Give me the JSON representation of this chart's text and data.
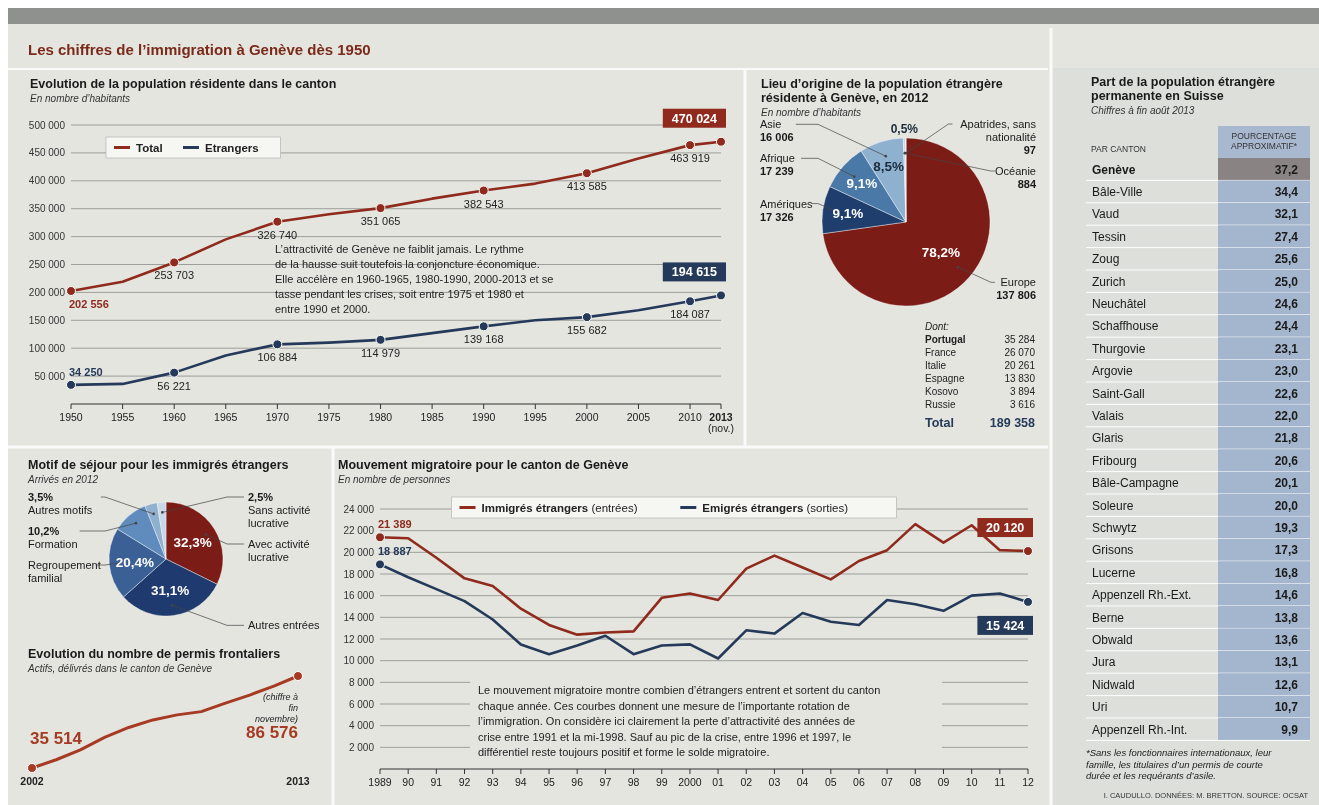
{
  "chart_data": [
    {
      "type": "other",
      "title": "Les chiffres de l’immigration à Genève dès 1950"
    },
    {
      "type": "line",
      "title": "Evolution de la population résidente dans le canton",
      "subtitle": "En nombre d’habitants",
      "x": [
        1950,
        1955,
        1960,
        1965,
        1970,
        1975,
        1980,
        1985,
        1990,
        1995,
        2000,
        2005,
        2010,
        2013
      ],
      "series": [
        {
          "name": "Total",
          "color": "#8f2a1c",
          "values": [
            202556,
            219000,
            253703,
            295000,
            326740,
            340000,
            351065,
            368000,
            382543,
            395000,
            413585,
            440000,
            463919,
            470024
          ],
          "value_labels": [
            "202 556",
            null,
            "253 703",
            null,
            "326 740",
            null,
            "351 065",
            null,
            "382 543",
            null,
            "413 585",
            null,
            "463 919",
            "470 024"
          ]
        },
        {
          "name": "Etrangers",
          "color": "#253a5a",
          "values": [
            34250,
            36000,
            56221,
            87000,
            106884,
            110000,
            114979,
            127000,
            139168,
            150000,
            155682,
            168000,
            184087,
            194615
          ],
          "value_labels": [
            "34 250",
            null,
            "56 221",
            null,
            "106 884",
            null,
            "114 979",
            null,
            "139 168",
            null,
            "155 682",
            null,
            "184 087",
            "194 615"
          ]
        }
      ],
      "xlim": [
        1950,
        2013
      ],
      "xticks": [
        1950,
        1955,
        1960,
        1965,
        1970,
        1975,
        1980,
        1985,
        1990,
        1995,
        2000,
        2005,
        2010,
        {
          "value": 2013,
          "label": "2013 (nov.)"
        }
      ],
      "ylim": [
        0,
        500000
      ],
      "yticks": [
        {
          "value": 50000,
          "label": "50 000"
        },
        {
          "value": 100000,
          "label": "100 000"
        },
        {
          "value": 150000,
          "label": "150 000"
        },
        {
          "value": 200000,
          "label": "200 000"
        },
        {
          "value": 250000,
          "label": "250 000"
        },
        {
          "value": 300000,
          "label": "300 000"
        },
        {
          "value": 350000,
          "label": "350 000"
        },
        {
          "value": 400000,
          "label": "400 000"
        },
        {
          "value": 450000,
          "label": "450 000"
        },
        {
          "value": 500000,
          "label": "500 000"
        }
      ],
      "grid": "y",
      "legend": "top left",
      "line_style": "solid",
      "annotations": [
        "L’attractivité de Genève ne faiblit jamais. Le rythme de la hausse suit toutefois la conjoncture économique. Elle accélère en 1960-1965, 1980-1990, 2000-2013 et se tasse pendant les crises, soit entre 1975 et 1980 et entre 1990 et 2000."
      ]
    },
    {
      "type": "pie",
      "title": "Lieu d’origine de la population étrangère résidente à Genève, en 2012",
      "subtitle": "En nombre d’habitants",
      "categories": [
        "Europe",
        "Amériques",
        "Afrique",
        "Asie",
        "Océanie",
        "Apatrides, sans nationalité"
      ],
      "values": [
        137806,
        17326,
        17239,
        16006,
        884,
        97
      ],
      "colors": [
        "#7b1c17",
        "#1f3e6d",
        "#4a79a8",
        "#8fb1d0",
        "#c6d6e4",
        "#dfe6ec"
      ],
      "data_labels": true,
      "annotations": [
        {
          "text": "78,2%",
          "x": "Europe"
        },
        {
          "text": "9,1%",
          "x": "Amériques"
        },
        {
          "text": "9,1%",
          "x": "Afrique"
        },
        {
          "text": "8,5%",
          "x": "Asie"
        },
        {
          "text": "0,5%",
          "x": "Océanie"
        },
        "Dont:",
        "Portugal 35 284",
        "France 26 070",
        "Italie 20 261",
        "Espagne 13 830",
        "Kosovo 3 894",
        "Russie 3 616",
        "Total 189 358"
      ]
    },
    {
      "type": "other",
      "title": "Part de la population étrangère permanente en Suisse",
      "subtitle": "Chiffres à fin août 2013",
      "ylabel": "PAR CANTON",
      "xlabel": "POURCENTAGE APPROXIMATIF*",
      "categories": [
        "Genève",
        "Bâle-Ville",
        "Vaud",
        "Tessin",
        "Zoug",
        "Zurich",
        "Neuchâtel",
        "Schaffhouse",
        "Thurgovie",
        "Argovie",
        "Saint-Gall",
        "Valais",
        "Glaris",
        "Fribourg",
        "Bâle-Campagne",
        "Soleure",
        "Schwytz",
        "Grisons",
        "Lucerne",
        "Appenzell Rh.-Ext.",
        "Berne",
        "Obwald",
        "Jura",
        "Nidwald",
        "Uri",
        "Appenzell Rh.-Int."
      ],
      "values": [
        37.2,
        34.4,
        32.1,
        27.4,
        25.6,
        25.0,
        24.6,
        24.4,
        23.1,
        23.0,
        22.6,
        22.0,
        21.8,
        20.6,
        20.1,
        20.0,
        19.3,
        17.3,
        16.8,
        14.6,
        13.8,
        13.6,
        13.1,
        12.6,
        10.7,
        9.9
      ],
      "value_labels": [
        "37,2",
        "34,4",
        "32,1",
        "27,4",
        "25,6",
        "25,0",
        "24,6",
        "24,4",
        "23,1",
        "23,0",
        "22,6",
        "22,0",
        "21,8",
        "20,6",
        "20,1",
        "20,0",
        "19,3",
        "17,3",
        "16,8",
        "14,6",
        "13,8",
        "13,6",
        "13,1",
        "12,6",
        "10,7",
        "9,9"
      ],
      "annotations": [
        "*Sans les fonctionnaires internationaux, leur famille, les titulaires d’un permis de courte durée et les requérants d’asile.",
        "I. CAUDULLO. DONNÉES: M. BRETTON. SOURCE: OCSAT"
      ]
    },
    {
      "type": "pie",
      "title": "Motif de séjour pour les immigrés étrangers",
      "subtitle": "Arrivés en 2012",
      "categories": [
        "Avec activité lucrative",
        "Autres entrées",
        "Regroupement familial",
        "Formation",
        "Autres motifs",
        "Sans activité lucrative"
      ],
      "values": [
        32.3,
        31.1,
        20.4,
        10.2,
        3.5,
        2.5
      ],
      "colors": [
        "#7b1c17",
        "#1f3a6e",
        "#3b6096",
        "#5f8bbd",
        "#8fb0cf",
        "#c8d8e6"
      ],
      "value_labels": [
        "32,3%",
        "31,1%",
        "20,4%",
        "10,2%",
        "3,5%",
        "2,5%"
      ]
    },
    {
      "type": "line",
      "title": "Evolution du nombre de permis frontaliers",
      "subtitle": "Actifs, délivrés dans le canton de Genève",
      "x": [
        2002,
        2003,
        2004,
        2005,
        2006,
        2007,
        2008,
        2009,
        2010,
        2011,
        2012,
        2013
      ],
      "series": [
        {
          "color": "#a63a22",
          "values": [
            35514,
            40100,
            45600,
            52500,
            58000,
            62200,
            65000,
            66800,
            71500,
            76000,
            81000,
            86576
          ],
          "value_labels": [
            "35 514",
            null,
            null,
            null,
            null,
            null,
            null,
            null,
            null,
            null,
            null,
            "86 576"
          ]
        }
      ],
      "xlim": [
        2002,
        2013
      ],
      "xticks": [
        2002,
        2013
      ],
      "tick_labels": "x",
      "annotations": [
        "(chiffre à fin novembre)"
      ]
    },
    {
      "type": "line",
      "title": "Mouvement migratoire pour le canton de Genève",
      "subtitle": "En nombre de personnes",
      "x": [
        1989,
        1990,
        1991,
        1992,
        1993,
        1994,
        1995,
        1996,
        1997,
        1998,
        1999,
        2000,
        2001,
        2002,
        2003,
        2004,
        2005,
        2006,
        2007,
        2008,
        2009,
        2010,
        2011,
        2012
      ],
      "series": [
        {
          "name": "Immigrés étrangers (entrées)",
          "color": "#8f2a1c",
          "values": [
            21389,
            21300,
            19500,
            17600,
            16900,
            14800,
            13300,
            12400,
            12600,
            12700,
            15800,
            16200,
            15600,
            18500,
            19700,
            18600,
            17500,
            19200,
            20200,
            22600,
            20900,
            22500,
            20200,
            20120
          ],
          "value_labels": [
            "21 389",
            null,
            null,
            null,
            null,
            null,
            null,
            null,
            null,
            null,
            null,
            null,
            null,
            null,
            null,
            null,
            null,
            null,
            null,
            null,
            null,
            null,
            null,
            "20 120"
          ]
        },
        {
          "name": "Emigrés étrangers (sorties)",
          "color": "#253a5a",
          "values": [
            18887,
            17700,
            16600,
            15500,
            13800,
            11500,
            10600,
            11400,
            12300,
            10600,
            11400,
            11500,
            10200,
            12800,
            12500,
            14400,
            13600,
            13300,
            15600,
            15200,
            14600,
            16000,
            16200,
            15424
          ],
          "value_labels": [
            "18 887",
            null,
            null,
            null,
            null,
            null,
            null,
            null,
            null,
            null,
            null,
            null,
            null,
            null,
            null,
            null,
            null,
            null,
            null,
            null,
            null,
            null,
            null,
            "15 424"
          ]
        }
      ],
      "xlim": [
        1989,
        2012
      ],
      "xticks": [
        1989,
        {
          "value": 1990,
          "label": "90"
        },
        {
          "value": 1991,
          "label": "91"
        },
        {
          "value": 1992,
          "label": "92"
        },
        {
          "value": 1993,
          "label": "93"
        },
        {
          "value": 1994,
          "label": "94"
        },
        {
          "value": 1995,
          "label": "95"
        },
        {
          "value": 1996,
          "label": "96"
        },
        {
          "value": 1997,
          "label": "97"
        },
        {
          "value": 1998,
          "label": "98"
        },
        {
          "value": 1999,
          "label": "99"
        },
        2000,
        {
          "value": 2001,
          "label": "01"
        },
        {
          "value": 2002,
          "label": "02"
        },
        {
          "value": 2003,
          "label": "03"
        },
        {
          "value": 2004,
          "label": "04"
        },
        {
          "value": 2005,
          "label": "05"
        },
        {
          "value": 2006,
          "label": "06"
        },
        {
          "value": 2007,
          "label": "07"
        },
        {
          "value": 2008,
          "label": "08"
        },
        {
          "value": 2009,
          "label": "09"
        },
        {
          "value": 2010,
          "label": "10"
        },
        {
          "value": 2011,
          "label": "11"
        },
        {
          "value": 2012,
          "label": "12"
        }
      ],
      "ylim": [
        0,
        24000
      ],
      "yticks": [
        {
          "value": 2000,
          "label": "2 000"
        },
        {
          "value": 4000,
          "label": "4 000"
        },
        {
          "value": 6000,
          "label": "6 000"
        },
        {
          "value": 8000,
          "label": "8 000"
        },
        {
          "value": 10000,
          "label": "10 000"
        },
        {
          "value": 12000,
          "label": "12 000"
        },
        {
          "value": 14000,
          "label": "14 000"
        },
        {
          "value": 16000,
          "label": "16 000"
        },
        {
          "value": 18000,
          "label": "18 000"
        },
        {
          "value": 20000,
          "label": "20 000"
        },
        {
          "value": 22000,
          "label": "22 000"
        },
        {
          "value": 24000,
          "label": "24 000"
        }
      ],
      "grid": "y",
      "legend": "top",
      "line_style": "solid",
      "annotations": [
        "Le mouvement migratoire montre combien d’étrangers entrent et sortent du canton chaque année. Ces courbes donnent une mesure de l’importante rotation de l’immigration. On considère ici clairement la perte d’attractivité des années de crise entre 1991 et la mi-1998. Sauf au pic de la crise, entre 1996 et 1997, le différentiel reste toujours positif et forme le solde migratoire."
      ]
    }
  ]
}
